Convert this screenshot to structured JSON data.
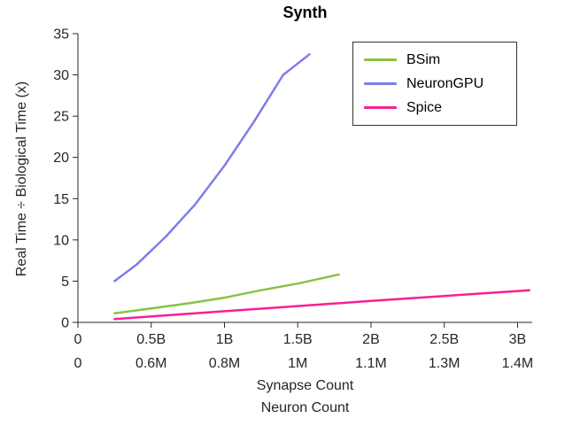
{
  "chart_data": {
    "type": "line",
    "title": "Synth",
    "ylabel": "Real Time ÷ Biological Time (x)",
    "xlabels": [
      "Synapse Count",
      "Neuron Count"
    ],
    "xlim": [
      0,
      3.1
    ],
    "ylim": [
      0,
      35
    ],
    "grid": false,
    "y_ticks": [
      0,
      5,
      10,
      15,
      20,
      25,
      30,
      35
    ],
    "x_ticks": {
      "values": [
        0,
        0.5,
        1,
        1.5,
        2,
        2.5,
        3
      ],
      "synapse_labels": [
        "0",
        "0.5B",
        "1B",
        "1.5B",
        "2B",
        "2.5B",
        "3B"
      ],
      "neuron_labels": [
        "0",
        "0.6M",
        "0.8M",
        "1M",
        "1.1M",
        "1.3M",
        "1.4M"
      ]
    },
    "legend": {
      "position": "top-right",
      "entries": [
        "BSim",
        "NeuronGPU",
        "Spice"
      ]
    },
    "series": [
      {
        "name": "BSim",
        "color": "#86C440",
        "x": [
          0.25,
          0.5,
          0.75,
          1.0,
          1.25,
          1.5,
          1.78
        ],
        "y": [
          1.1,
          1.7,
          2.3,
          3.0,
          3.9,
          4.7,
          5.8
        ]
      },
      {
        "name": "NeuronGPU",
        "color": "#7D7DEE",
        "x": [
          0.25,
          0.4,
          0.6,
          0.8,
          1.0,
          1.2,
          1.4,
          1.58
        ],
        "y": [
          5.0,
          7.0,
          10.4,
          14.3,
          19.0,
          24.3,
          30.0,
          32.5
        ]
      },
      {
        "name": "Spice",
        "color": "#FA1E96",
        "x": [
          0.25,
          1.0,
          2.0,
          3.08
        ],
        "y": [
          0.4,
          1.35,
          2.6,
          3.9
        ]
      }
    ]
  }
}
